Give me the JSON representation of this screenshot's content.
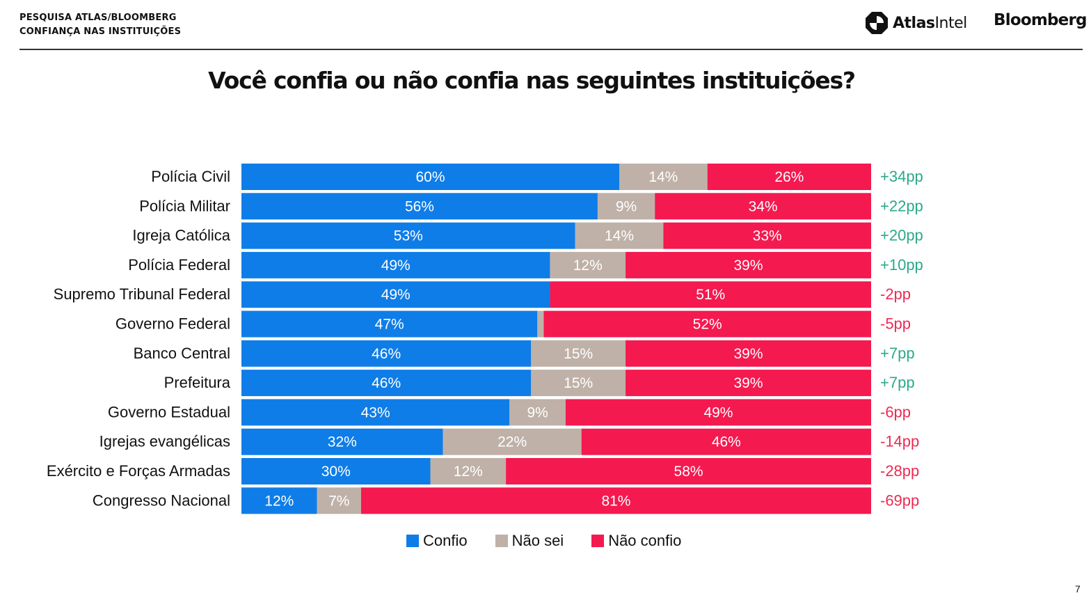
{
  "header": {
    "line1": "PESQUISA ATLAS/BLOOMBERG",
    "line2": "CONFIANÇA NAS INSTITUIÇÕES"
  },
  "brands": {
    "atlas_bold": "Atlas",
    "atlas_light": "Intel",
    "bloomberg": "Bloomberg"
  },
  "page_number": "7",
  "colors": {
    "confio": "#0f7de8",
    "nao_sei": "#bfb1a8",
    "nao_confio": "#f4194f",
    "positive": "#2aa98a",
    "negative": "#ef2952"
  },
  "chart_data": {
    "type": "bar",
    "stacked": true,
    "orientation": "horizontal",
    "title": "Você confia ou não confia nas seguintes instituições?",
    "categories": [
      "Polícia Civil",
      "Polícia Militar",
      "Igreja Católica",
      "Polícia Federal",
      "Supremo Tribunal Federal",
      "Governo Federal",
      "Banco Central",
      "Prefeitura",
      "Governo Estadual",
      "Igrejas evangélicas",
      "Exército e Forças Armadas",
      "Congresso Nacional"
    ],
    "series": [
      {
        "name": "Confio",
        "values": [
          60,
          56,
          53,
          49,
          49,
          47,
          46,
          46,
          43,
          32,
          30,
          12
        ],
        "labels": [
          "60%",
          "56%",
          "53%",
          "49%",
          "49%",
          "47%",
          "46%",
          "46%",
          "43%",
          "32%",
          "30%",
          "12%"
        ]
      },
      {
        "name": "Não sei",
        "values": [
          14,
          9,
          14,
          12,
          0,
          1,
          15,
          15,
          9,
          22,
          12,
          7
        ],
        "labels": [
          "14%",
          "9%",
          "14%",
          "12%",
          "",
          "",
          "15%",
          "15%",
          "9%",
          "22%",
          "12%",
          "7%"
        ]
      },
      {
        "name": "Não confio",
        "values": [
          26,
          34,
          33,
          39,
          51,
          52,
          39,
          39,
          49,
          46,
          58,
          81
        ],
        "labels": [
          "26%",
          "34%",
          "33%",
          "39%",
          "51%",
          "52%",
          "39%",
          "39%",
          "49%",
          "46%",
          "58%",
          "81%"
        ]
      }
    ],
    "net": [
      "+34pp",
      "+22pp",
      "+20pp",
      "+10pp",
      "-2pp",
      "-5pp",
      "+7pp",
      "+7pp",
      "-6pp",
      "-14pp",
      "-28pp",
      "-69pp"
    ],
    "legend_position": "bottom",
    "xlim": [
      0,
      100
    ]
  }
}
